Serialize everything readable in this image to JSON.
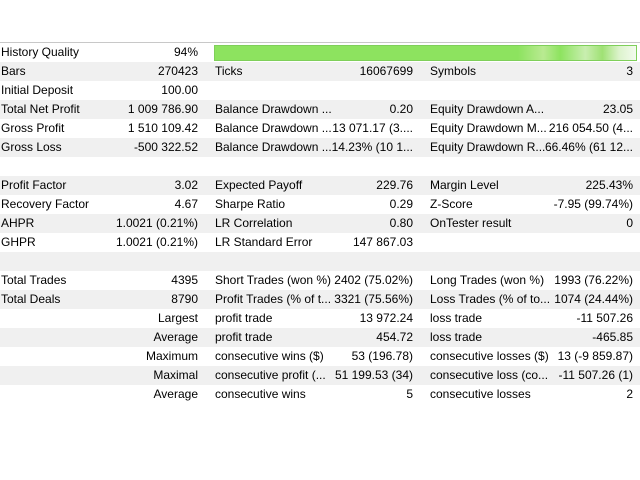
{
  "rows": [
    {
      "cells": [
        {
          "label": "History Quality",
          "value": "94%"
        }
      ]
    },
    {
      "cells": [
        {
          "label": "Bars",
          "value": "270423"
        },
        {
          "label": "Ticks",
          "value": "16067699"
        },
        {
          "label": "Symbols",
          "value": "3"
        }
      ]
    },
    {
      "cells": [
        {
          "label": "Initial Deposit",
          "value": "100.00"
        }
      ]
    },
    {
      "cells": [
        {
          "label": "Total Net Profit",
          "value": "1 009 786.90"
        },
        {
          "label": "Balance Drawdown ...",
          "value": "0.20"
        },
        {
          "label": "Equity Drawdown A...",
          "value": "23.05"
        }
      ]
    },
    {
      "cells": [
        {
          "label": "Gross Profit",
          "value": "1 510 109.42"
        },
        {
          "label": "Balance Drawdown ...",
          "value": "13 071.17 (3...."
        },
        {
          "label": "Equity Drawdown M...",
          "value": "216 054.50 (4..."
        }
      ]
    },
    {
      "cells": [
        {
          "label": "Gross Loss",
          "value": "-500 322.52"
        },
        {
          "label": "Balance Drawdown ...",
          "value": "14.23% (10 1..."
        },
        {
          "label": "Equity Drawdown R...",
          "value": "66.46% (61 12..."
        }
      ]
    },
    {
      "cells": []
    },
    {
      "cells": [
        {
          "label": "Profit Factor",
          "value": "3.02"
        },
        {
          "label": "Expected Payoff",
          "value": "229.76"
        },
        {
          "label": "Margin Level",
          "value": "225.43%"
        }
      ]
    },
    {
      "cells": [
        {
          "label": "Recovery Factor",
          "value": "4.67"
        },
        {
          "label": "Sharpe Ratio",
          "value": "0.29"
        },
        {
          "label": "Z-Score",
          "value": "-7.95 (99.74%)"
        }
      ]
    },
    {
      "cells": [
        {
          "label": "AHPR",
          "value": "1.0021 (0.21%)"
        },
        {
          "label": "LR Correlation",
          "value": "0.80"
        },
        {
          "label": "OnTester result",
          "value": "0"
        }
      ]
    },
    {
      "cells": [
        {
          "label": "GHPR",
          "value": "1.0021 (0.21%)"
        },
        {
          "label": "LR Standard Error",
          "value": "147 867.03"
        }
      ]
    },
    {
      "cells": []
    },
    {
      "cells": [
        {
          "label": "Total Trades",
          "value": "4395"
        },
        {
          "label": "Short Trades (won %)",
          "value": "2402 (75.02%)"
        },
        {
          "label": "Long Trades (won %)",
          "value": "1993 (76.22%)"
        }
      ]
    },
    {
      "cells": [
        {
          "label": "Total Deals",
          "value": "8790"
        },
        {
          "label": "Profit Trades (% of t...",
          "value": "3321 (75.56%)"
        },
        {
          "label": "Loss Trades (% of to...",
          "value": "1074 (24.44%)"
        }
      ]
    },
    {
      "cells": [
        {
          "value": "Largest"
        },
        {
          "label": "profit trade",
          "value": "13 972.24"
        },
        {
          "label": "loss trade",
          "value": "-11 507.26"
        }
      ]
    },
    {
      "cells": [
        {
          "value": "Average"
        },
        {
          "label": "profit trade",
          "value": "454.72"
        },
        {
          "label": "loss trade",
          "value": "-465.85"
        }
      ]
    },
    {
      "cells": [
        {
          "value": "Maximum"
        },
        {
          "label": "consecutive wins ($)",
          "value": "53 (196.78)"
        },
        {
          "label": "consecutive losses ($)",
          "value": "13 (-9 859.87)"
        }
      ]
    },
    {
      "cells": [
        {
          "value": "Maximal"
        },
        {
          "label": "consecutive profit (...",
          "value": "51 199.53 (34)"
        },
        {
          "label": "consecutive loss (co...",
          "value": "-11 507.26 (1)"
        }
      ]
    },
    {
      "cells": [
        {
          "value": "Average"
        },
        {
          "label": "consecutive wins",
          "value": "5"
        },
        {
          "label": "consecutive losses",
          "value": "2"
        }
      ]
    }
  ]
}
